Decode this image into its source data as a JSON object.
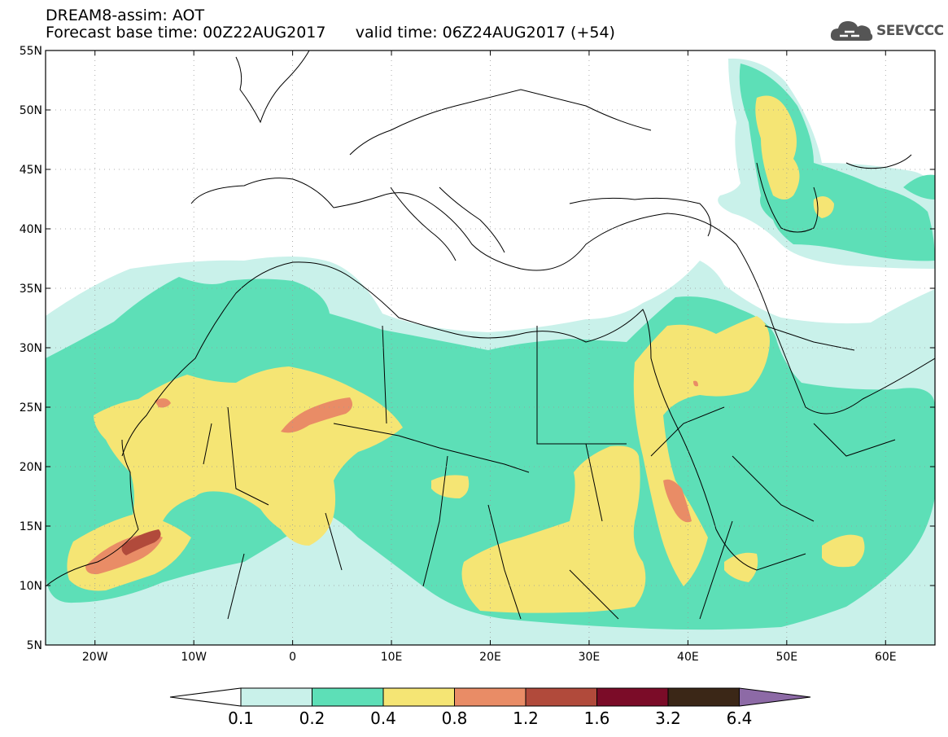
{
  "title_line1": "DREAM8-assim: AOT",
  "title_line2": "Forecast base time: 00Z22AUG2017      valid time: 06Z24AUG2017 (+54)",
  "logo_text": "SEEVCCC",
  "map": {
    "lon_range": [
      -25,
      65
    ],
    "lat_range": [
      5,
      55
    ],
    "lat_ticks": [
      {
        "value": 55,
        "label": "55N"
      },
      {
        "value": 50,
        "label": "50N"
      },
      {
        "value": 45,
        "label": "45N"
      },
      {
        "value": 40,
        "label": "40N"
      },
      {
        "value": 35,
        "label": "35N"
      },
      {
        "value": 30,
        "label": "30N"
      },
      {
        "value": 25,
        "label": "25N"
      },
      {
        "value": 20,
        "label": "20N"
      },
      {
        "value": 15,
        "label": "15N"
      },
      {
        "value": 10,
        "label": "10N"
      },
      {
        "value": 5,
        "label": "5N"
      }
    ],
    "lon_ticks": [
      {
        "value": -20,
        "label": "20W"
      },
      {
        "value": -10,
        "label": "10W"
      },
      {
        "value": 0,
        "label": "0"
      },
      {
        "value": 10,
        "label": "10E"
      },
      {
        "value": 20,
        "label": "20E"
      },
      {
        "value": 30,
        "label": "30E"
      },
      {
        "value": 40,
        "label": "40E"
      },
      {
        "value": 50,
        "label": "50E"
      },
      {
        "value": 60,
        "label": "60E"
      }
    ]
  },
  "colorbar": {
    "labels": [
      "0.1",
      "0.2",
      "0.4",
      "0.8",
      "1.2",
      "1.6",
      "3.2",
      "6.4"
    ],
    "colors": [
      "#ffffff",
      "#c9f1ea",
      "#5ddfb7",
      "#f5e574",
      "#e98c66",
      "#b14a3b",
      "#7b0c28",
      "#3b2717",
      "#8d6aa6"
    ]
  },
  "colors": {
    "level_01": "#c9f1ea",
    "level_02": "#5ddfb7",
    "level_04": "#f5e574",
    "level_08": "#e98c66",
    "level_12": "#b14a3b"
  }
}
